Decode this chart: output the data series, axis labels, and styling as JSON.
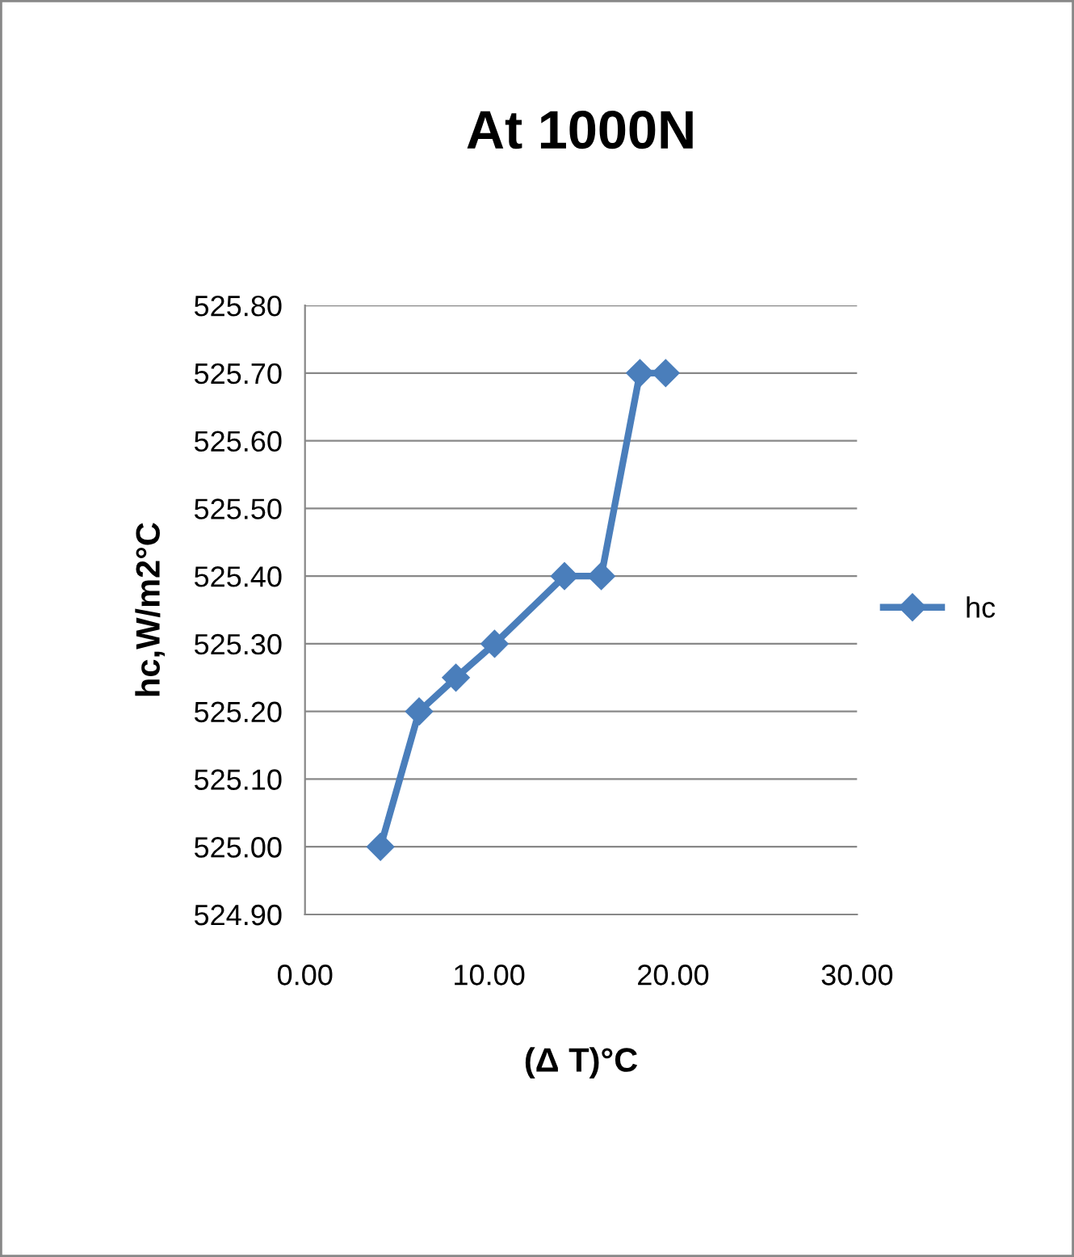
{
  "chart_data": {
    "type": "line",
    "title": "At 1000N",
    "xlabel": "(Δ T)°C",
    "ylabel": "hc,W/m2°C",
    "series": [
      {
        "name": "hc",
        "color": "#4a7ebb",
        "x": [
          4.1,
          6.2,
          8.2,
          10.3,
          14.1,
          16.1,
          18.2,
          19.6
        ],
        "values": [
          525.0,
          525.2,
          525.25,
          525.3,
          525.4,
          525.4,
          525.7,
          525.7
        ]
      }
    ],
    "xlim": [
      0,
      30
    ],
    "xticks": [
      {
        "value": 0,
        "label": "0.00"
      },
      {
        "value": 10,
        "label": "10.00"
      },
      {
        "value": 20,
        "label": "20.00"
      },
      {
        "value": 30,
        "label": "30.00"
      }
    ],
    "ylim": [
      524.9,
      525.8
    ],
    "yticks": [
      {
        "value": 524.9,
        "label": "524.90"
      },
      {
        "value": 525.0,
        "label": "525.00"
      },
      {
        "value": 525.1,
        "label": "525.10"
      },
      {
        "value": 525.2,
        "label": "525.20"
      },
      {
        "value": 525.3,
        "label": "525.30"
      },
      {
        "value": 525.4,
        "label": "525.40"
      },
      {
        "value": 525.5,
        "label": "525.50"
      },
      {
        "value": 525.6,
        "label": "525.60"
      },
      {
        "value": 525.7,
        "label": "525.70"
      },
      {
        "value": 525.8,
        "label": "525.80"
      }
    ],
    "grid": "y",
    "legend": "right",
    "marker": "diamond",
    "line_style": "solid"
  }
}
